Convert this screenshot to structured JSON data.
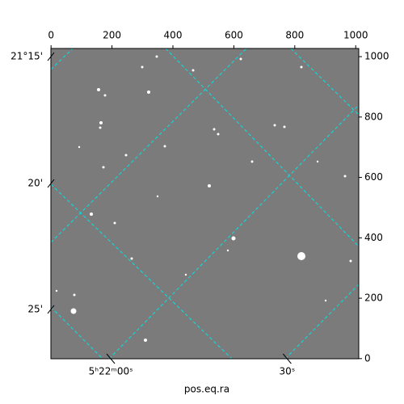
{
  "chart_data": {
    "type": "image",
    "xlabel": "pos.eq.ra",
    "xlim": [
      -0.5,
      1010
    ],
    "ylim": [
      -0.5,
      1027
    ],
    "xticks": [
      0,
      200,
      400,
      600,
      800,
      1000
    ],
    "yticks": [
      0,
      200,
      400,
      600,
      800,
      1000
    ],
    "world_xticks": [
      {
        "value": 196,
        "label": "5ʰ22ᵐ00ˢ"
      },
      {
        "value": 775,
        "label": "30ˢ"
      }
    ],
    "world_yticks": [
      {
        "value": 1000,
        "label": "21°15'"
      },
      {
        "value": 580,
        "label": "20'"
      },
      {
        "value": 163,
        "label": "25'"
      }
    ],
    "grid_color": "#00e5e5"
  }
}
